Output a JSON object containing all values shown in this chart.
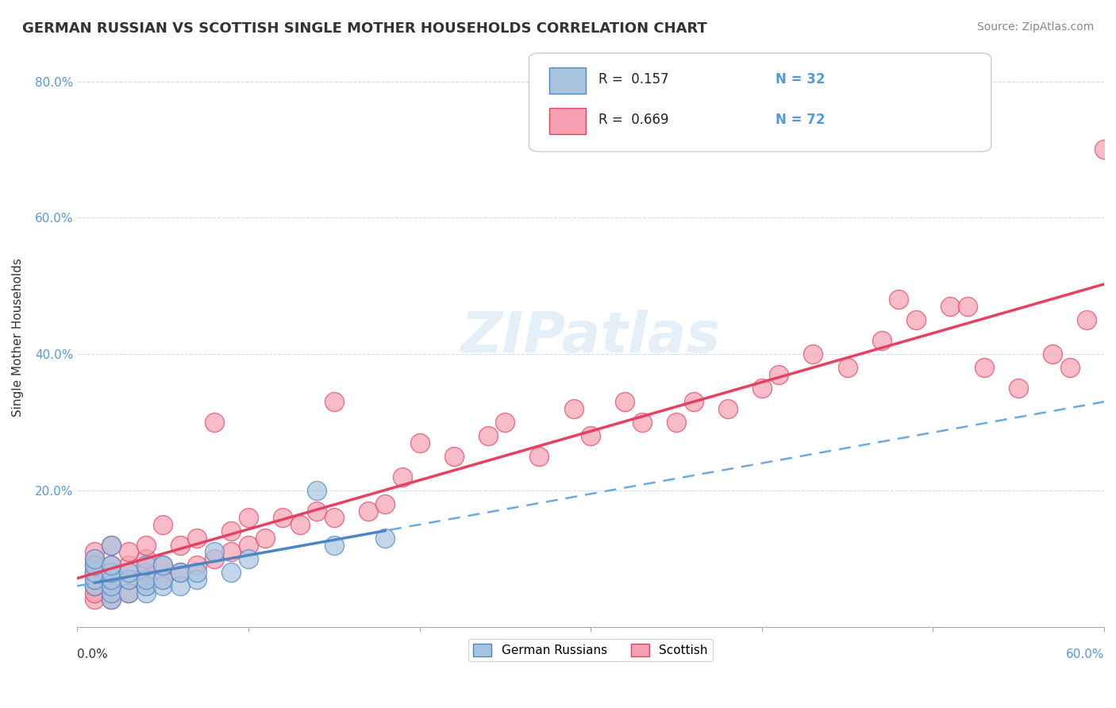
{
  "title": "GERMAN RUSSIAN VS SCOTTISH SINGLE MOTHER HOUSEHOLDS CORRELATION CHART",
  "source": "Source: ZipAtlas.com",
  "ylabel": "Single Mother Households",
  "watermark": "ZIPatlas",
  "xlim": [
    0.0,
    0.6
  ],
  "ylim": [
    0.0,
    0.85
  ],
  "yticks": [
    0.0,
    0.2,
    0.4,
    0.6,
    0.8
  ],
  "ytick_labels": [
    "",
    "20.0%",
    "40.0%",
    "60.0%",
    "80.0%"
  ],
  "color_blue": "#a8c4e0",
  "color_pink": "#f4a0b0",
  "color_blue_line": "#4a86c8",
  "color_pink_line": "#e84060",
  "color_dashed_blue": "#6aaae0",
  "german_russian_x": [
    0.01,
    0.01,
    0.01,
    0.01,
    0.01,
    0.02,
    0.02,
    0.02,
    0.02,
    0.02,
    0.02,
    0.02,
    0.03,
    0.03,
    0.03,
    0.04,
    0.04,
    0.04,
    0.04,
    0.05,
    0.05,
    0.05,
    0.06,
    0.06,
    0.07,
    0.07,
    0.08,
    0.09,
    0.1,
    0.14,
    0.15,
    0.18
  ],
  "german_russian_y": [
    0.06,
    0.07,
    0.08,
    0.09,
    0.1,
    0.04,
    0.05,
    0.06,
    0.07,
    0.08,
    0.09,
    0.12,
    0.05,
    0.07,
    0.08,
    0.05,
    0.06,
    0.07,
    0.09,
    0.06,
    0.07,
    0.09,
    0.06,
    0.08,
    0.07,
    0.08,
    0.11,
    0.08,
    0.1,
    0.2,
    0.12,
    0.13
  ],
  "scottish_x": [
    0.01,
    0.01,
    0.01,
    0.01,
    0.01,
    0.01,
    0.01,
    0.01,
    0.02,
    0.02,
    0.02,
    0.02,
    0.02,
    0.02,
    0.02,
    0.03,
    0.03,
    0.03,
    0.03,
    0.04,
    0.04,
    0.04,
    0.04,
    0.05,
    0.05,
    0.05,
    0.06,
    0.06,
    0.07,
    0.07,
    0.08,
    0.08,
    0.09,
    0.09,
    0.1,
    0.1,
    0.11,
    0.12,
    0.13,
    0.14,
    0.15,
    0.15,
    0.17,
    0.18,
    0.19,
    0.2,
    0.22,
    0.24,
    0.25,
    0.27,
    0.29,
    0.3,
    0.32,
    0.33,
    0.35,
    0.36,
    0.38,
    0.4,
    0.41,
    0.43,
    0.45,
    0.47,
    0.49,
    0.51,
    0.53,
    0.55,
    0.57,
    0.58,
    0.59,
    0.6,
    0.52,
    0.48
  ],
  "scottish_y": [
    0.04,
    0.05,
    0.06,
    0.07,
    0.08,
    0.09,
    0.1,
    0.11,
    0.04,
    0.05,
    0.06,
    0.07,
    0.08,
    0.09,
    0.12,
    0.05,
    0.07,
    0.09,
    0.11,
    0.06,
    0.08,
    0.1,
    0.12,
    0.07,
    0.09,
    0.15,
    0.08,
    0.12,
    0.09,
    0.13,
    0.1,
    0.3,
    0.11,
    0.14,
    0.12,
    0.16,
    0.13,
    0.16,
    0.15,
    0.17,
    0.16,
    0.33,
    0.17,
    0.18,
    0.22,
    0.27,
    0.25,
    0.28,
    0.3,
    0.25,
    0.32,
    0.28,
    0.33,
    0.3,
    0.3,
    0.33,
    0.32,
    0.35,
    0.37,
    0.4,
    0.38,
    0.42,
    0.45,
    0.47,
    0.38,
    0.35,
    0.4,
    0.38,
    0.45,
    0.7,
    0.47,
    0.48
  ]
}
